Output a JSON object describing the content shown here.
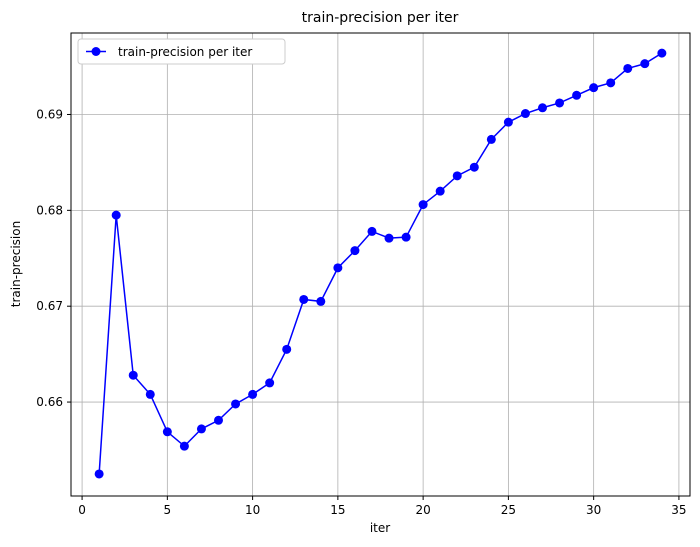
{
  "chart_data": {
    "type": "line",
    "title": "train-precision per iter",
    "xlabel": "iter",
    "ylabel": "train-precision",
    "xlim": [
      -0.65,
      35.65
    ],
    "ylim": [
      0.6502,
      0.6985
    ],
    "x_ticks": [
      0,
      5,
      10,
      15,
      20,
      25,
      30,
      35
    ],
    "x_tick_labels": [
      "0",
      "5",
      "10",
      "15",
      "20",
      "25",
      "30",
      "35"
    ],
    "y_ticks": [
      0.66,
      0.67,
      0.68,
      0.69
    ],
    "y_tick_labels": [
      "0.66",
      "0.67",
      "0.68",
      "0.69"
    ],
    "grid": true,
    "legend_position": "top-left",
    "series": [
      {
        "name": "train-precision per iter",
        "color": "#0000ff",
        "marker": "circle",
        "x": [
          1,
          2,
          3,
          4,
          5,
          6,
          7,
          8,
          9,
          10,
          11,
          12,
          13,
          14,
          15,
          16,
          17,
          18,
          19,
          20,
          21,
          22,
          23,
          24,
          25,
          26,
          27,
          28,
          29,
          30,
          31,
          32,
          33,
          34
        ],
        "y": [
          0.6525,
          0.6795,
          0.6628,
          0.6608,
          0.6569,
          0.6554,
          0.6572,
          0.6581,
          0.6598,
          0.6608,
          0.662,
          0.6655,
          0.6707,
          0.6705,
          0.674,
          0.6758,
          0.6778,
          0.6771,
          0.6772,
          0.6806,
          0.682,
          0.6836,
          0.6845,
          0.6874,
          0.6892,
          0.6901,
          0.6907,
          0.6912,
          0.692,
          0.6928,
          0.6933,
          0.6948,
          0.6953,
          0.6964
        ]
      }
    ]
  }
}
